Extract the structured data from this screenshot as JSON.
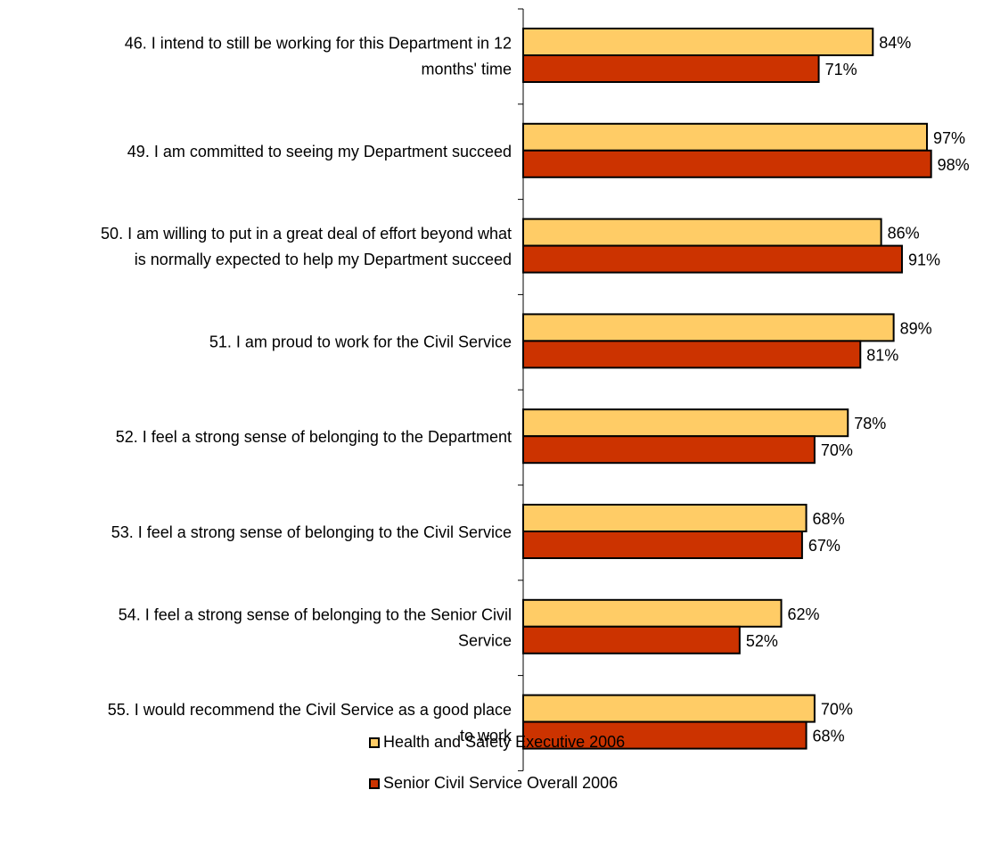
{
  "colors": {
    "series1": "#FFCC66",
    "series2": "#CC3300",
    "outline": "#000000",
    "axis": "#000000"
  },
  "chart_data": {
    "type": "bar",
    "orientation": "horizontal",
    "title": "",
    "xlabel": "",
    "ylabel": "",
    "xlim": [
      0,
      100
    ],
    "grid": false,
    "legend_position": "bottom",
    "value_suffix": "%",
    "categories": [
      [
        "46. I intend to still be working for this Department in 12",
        "months' time"
      ],
      [
        "49. I am committed to seeing my Department succeed"
      ],
      [
        "50. I am willing to put in a great deal of effort beyond what",
        "is normally expected to help my Department succeed"
      ],
      [
        "51. I am proud to work for the Civil Service"
      ],
      [
        "52. I feel a strong sense of belonging to the Department"
      ],
      [
        "53. I feel a strong sense of belonging to the Civil Service"
      ],
      [
        "54. I feel a strong sense of belonging to the Senior Civil",
        "Service"
      ],
      [
        "55. I would recommend the Civil Service as a good place",
        "to work"
      ]
    ],
    "series": [
      {
        "name": "Health and Safety Executive 2006",
        "color": "#FFCC66",
        "values": [
          84,
          97,
          86,
          89,
          78,
          68,
          62,
          70
        ]
      },
      {
        "name": "Senior Civil Service Overall 2006",
        "color": "#CC3300",
        "values": [
          71,
          98,
          91,
          81,
          70,
          67,
          52,
          68
        ]
      }
    ]
  }
}
